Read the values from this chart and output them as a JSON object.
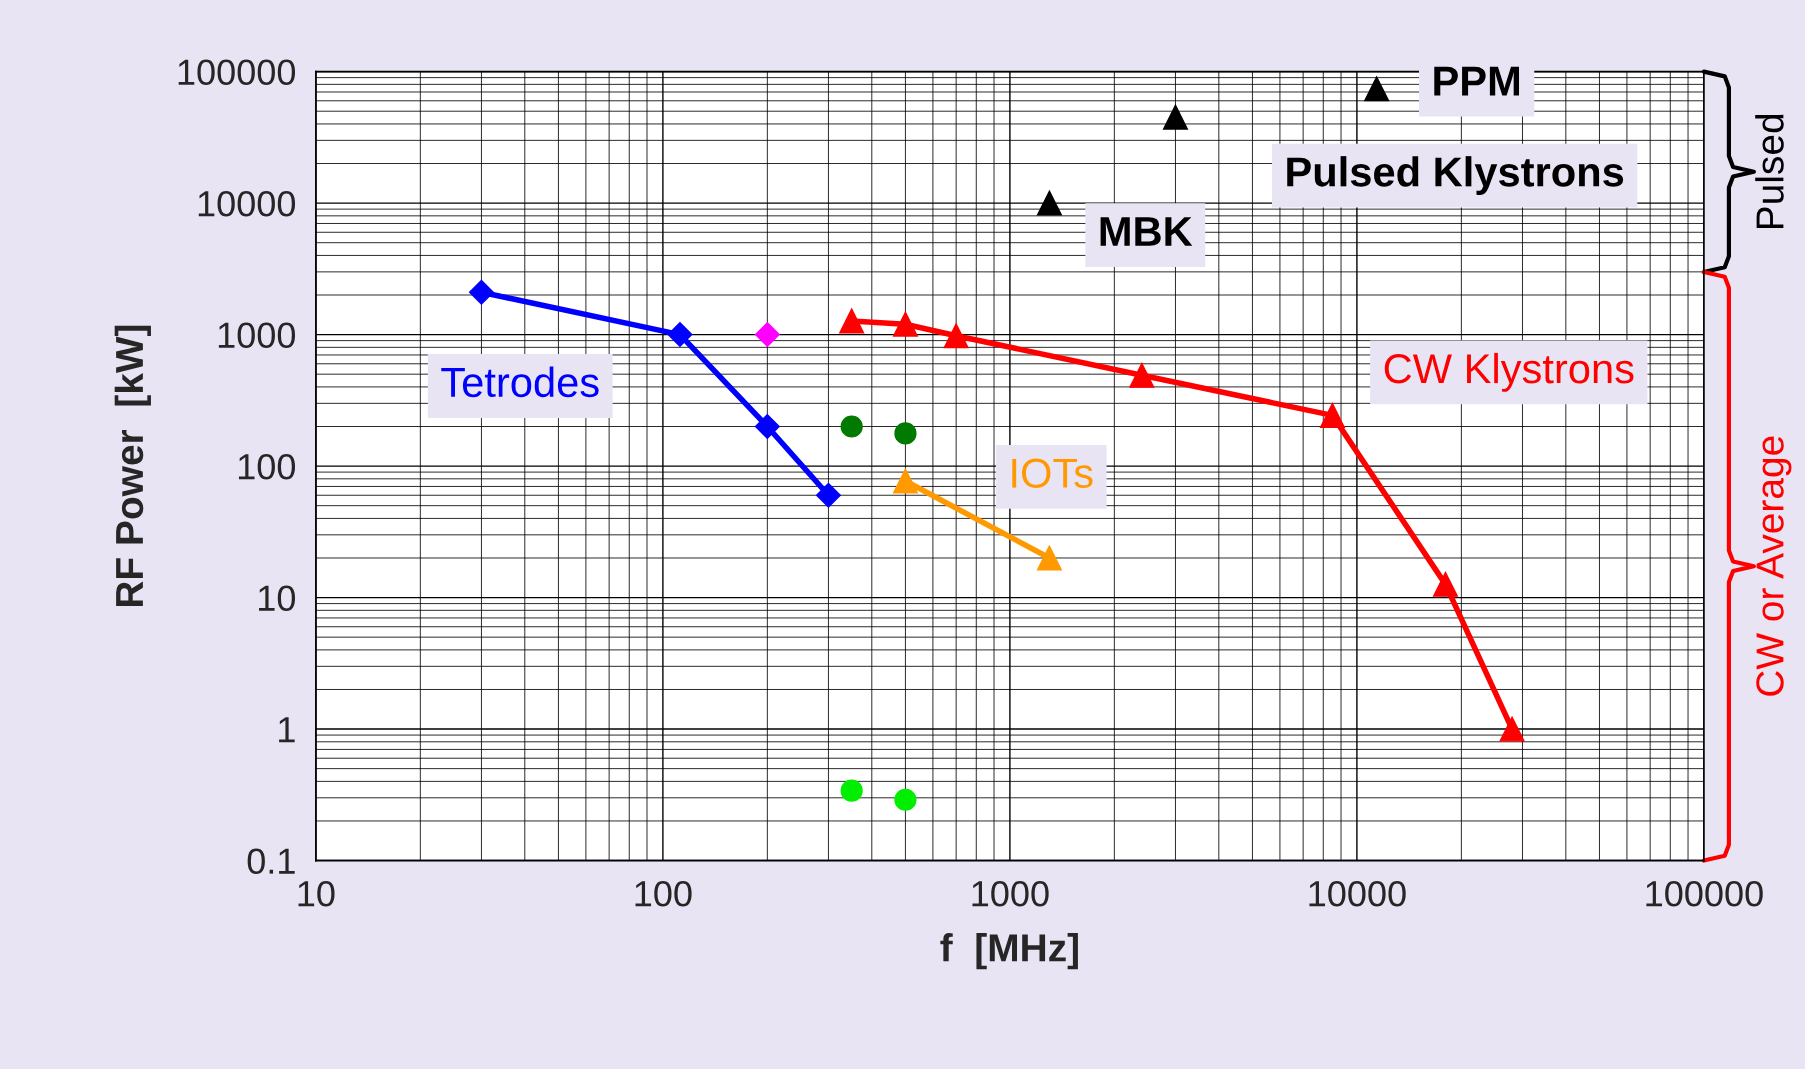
{
  "chart_data": {
    "type": "line",
    "xlabel": "f  [MHz]",
    "ylabel": "RF Power  [kW]",
    "log": "xy",
    "grid": true,
    "xlim": [
      10,
      100000
    ],
    "xticks": [
      10,
      100,
      1000,
      10000,
      100000
    ],
    "ylim": [
      0.1,
      100000
    ],
    "yticks": [
      0.1,
      1,
      10,
      100,
      1000,
      10000,
      100000
    ],
    "series": [
      {
        "name": "Tetrodes",
        "marker": "diamond",
        "color": "#0000ff",
        "x": [
          30,
          112,
          200,
          300
        ],
        "values": [
          2100,
          1000,
          200,
          60
        ]
      },
      {
        "type": "scatter",
        "marker": "diamond",
        "color": "#ff00ff",
        "x": [
          200
        ],
        "values": [
          1000
        ]
      },
      {
        "type": "scatter",
        "marker": "circle",
        "color": "#007a00",
        "x": [
          350,
          500
        ],
        "values": [
          200,
          177
        ]
      },
      {
        "type": "scatter",
        "marker": "circle",
        "color": "#00ee00",
        "x": [
          350,
          500
        ],
        "values": [
          0.34,
          0.29
        ]
      },
      {
        "name": "IOTs",
        "marker": "triangle",
        "color": "#ff9900",
        "x": [
          500,
          1300
        ],
        "values": [
          77,
          20
        ]
      },
      {
        "name": "CW Klystrons",
        "marker": "triangle",
        "color": "#ff0000",
        "x": [
          350,
          500,
          700,
          2400,
          8500,
          18000,
          28000
        ],
        "values": [
          1270,
          1200,
          980,
          490,
          243,
          12.6,
          1
        ]
      },
      {
        "name": "MBK",
        "type": "scatter",
        "marker": "triangle",
        "color": "#000000",
        "x": [
          1300
        ],
        "values": [
          10000
        ]
      },
      {
        "name": "Pulsed Klystrons",
        "type": "scatter",
        "marker": "triangle",
        "color": "#000000",
        "x": [
          3000
        ],
        "values": [
          45000
        ]
      },
      {
        "name": "PPM",
        "type": "scatter",
        "marker": "triangle",
        "color": "#000000",
        "x": [
          11400
        ],
        "values": [
          74000
        ]
      }
    ],
    "annotations": [
      "Pulsed",
      "CW or Average"
    ]
  }
}
